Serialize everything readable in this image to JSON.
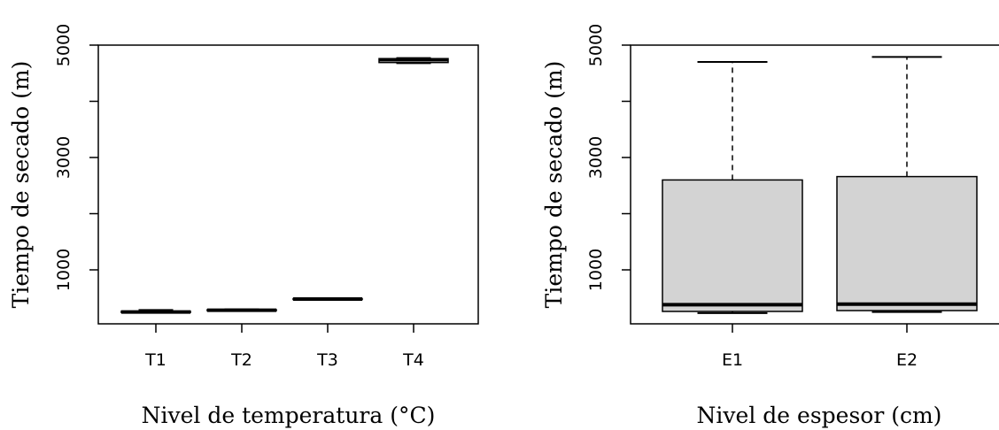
{
  "chart_data": [
    {
      "type": "box",
      "xlabel": "Nivel de temperatura (°C)",
      "ylabel": "Tiempo de secado (m)",
      "categories": [
        "T1",
        "T2",
        "T3",
        "T4"
      ],
      "ylim": [
        0,
        5000
      ],
      "yticks": [
        1000,
        3000,
        5000
      ],
      "grid": false,
      "box_fill": "#ffffff",
      "boxes": [
        {
          "name": "T1",
          "min": 240,
          "q1": 240,
          "median": 250,
          "q3": 265,
          "max": 285
        },
        {
          "name": "T2",
          "min": 268,
          "q1": 272,
          "median": 282,
          "q3": 292,
          "max": 298
        },
        {
          "name": "T3",
          "min": 468,
          "q1": 472,
          "median": 480,
          "q3": 488,
          "max": 492
        },
        {
          "name": "T4",
          "min": 4680,
          "q1": 4690,
          "median": 4740,
          "q3": 4760,
          "max": 4770
        }
      ]
    },
    {
      "type": "box",
      "xlabel": "Nivel de espesor (cm)",
      "ylabel": "Tiempo de secado (m)",
      "categories": [
        "E1",
        "E2"
      ],
      "ylim": [
        0,
        5000
      ],
      "yticks": [
        1000,
        3000,
        5000
      ],
      "grid": false,
      "box_fill": "#d3d3d3",
      "boxes": [
        {
          "name": "E1",
          "min": 230,
          "q1": 260,
          "median": 380,
          "q3": 2600,
          "max": 4700
        },
        {
          "name": "E2",
          "min": 250,
          "q1": 275,
          "median": 390,
          "q3": 2660,
          "max": 4790
        }
      ]
    }
  ]
}
